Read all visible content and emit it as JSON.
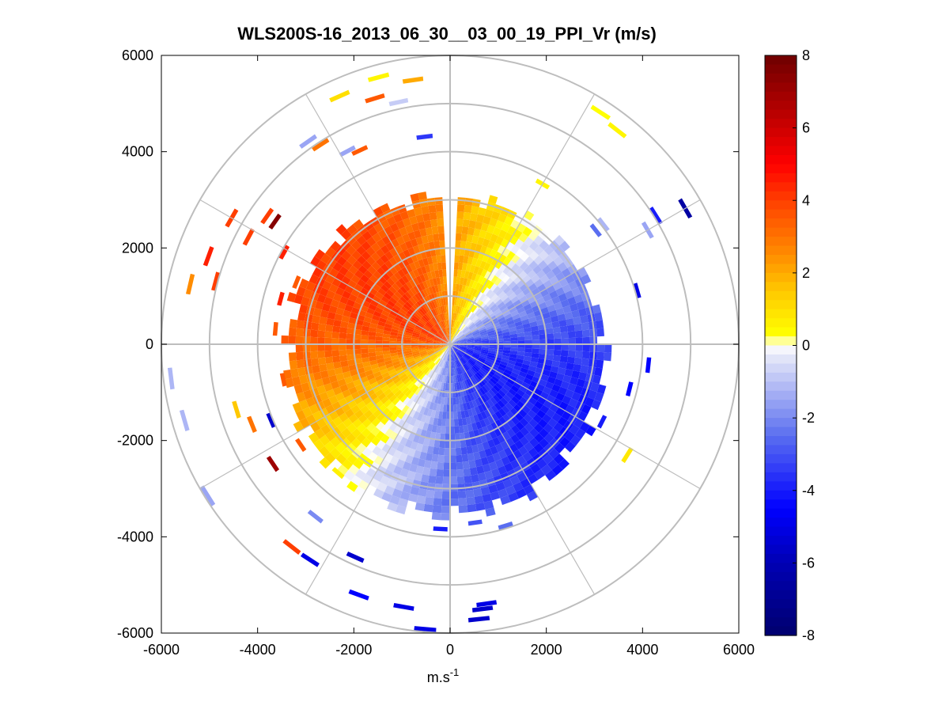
{
  "chart_data": {
    "type": "heatmap",
    "title": "WLS200S-16_2013_06_30__03_00_19_PPI_Vr (m/s)",
    "xlabel": "m.s",
    "xlabel_sup": "-1",
    "ylabel": "",
    "xlim": [
      -6000,
      6000
    ],
    "ylim": [
      -6000,
      6000
    ],
    "xticks": [
      -6000,
      -4000,
      -2000,
      0,
      2000,
      4000,
      6000
    ],
    "yticks": [
      6000,
      4000,
      2000,
      0,
      -2000,
      -4000,
      -6000
    ],
    "range_rings_m": [
      1000,
      2000,
      3000,
      4000,
      5000,
      6000
    ],
    "spoke_angles_deg": [
      0,
      30,
      60,
      90,
      120,
      150,
      180,
      210,
      240,
      270,
      300,
      330
    ],
    "colorbar": {
      "min": -8,
      "max": 8,
      "ticks": [
        8,
        6,
        4,
        2,
        0,
        -2,
        -4,
        -6,
        -8
      ],
      "colormap": "blue-white-yellow-red",
      "stops": [
        {
          "v": -8,
          "color": "#00006e"
        },
        {
          "v": -6,
          "color": "#0000b4"
        },
        {
          "v": -4.5,
          "color": "#0000ff"
        },
        {
          "v": -2.5,
          "color": "#5a6ef0"
        },
        {
          "v": -0.3,
          "color": "#e6e8f8"
        },
        {
          "v": 0,
          "color": "#ffffff"
        },
        {
          "v": 0.3,
          "color": "#ffff00"
        },
        {
          "v": 1.5,
          "color": "#ffc800"
        },
        {
          "v": 2.5,
          "color": "#ff8c00"
        },
        {
          "v": 3.8,
          "color": "#ff4a00"
        },
        {
          "v": 5,
          "color": "#ff0000"
        },
        {
          "v": 6.5,
          "color": "#b40000"
        },
        {
          "v": 8,
          "color": "#6e0000"
        }
      ]
    },
    "velocity_field": {
      "model": "Vr = -4 * cos(azimuth_deg - 125)",
      "azimuth_origin": "north",
      "azimuth_direction": "clockwise",
      "main_coverage_max_range_m": 3600,
      "no_data_azimuth_gap_deg": [
        -2,
        2
      ],
      "range_gates_m": 150
    },
    "scattered_returns": [
      {
        "r": 4400,
        "az": 305,
        "v": 7.5
      },
      {
        "r": 5200,
        "az": 300,
        "v": 4
      },
      {
        "r": 4700,
        "az": 298,
        "v": 4
      },
      {
        "r": 5300,
        "az": 290,
        "v": 4.5
      },
      {
        "r": 5000,
        "az": 285,
        "v": 4
      },
      {
        "r": 5500,
        "az": 283,
        "v": 2.5
      },
      {
        "r": 4600,
        "az": 305,
        "v": 4
      },
      {
        "r": 5600,
        "az": 336,
        "v": 1
      },
      {
        "r": 5700,
        "az": 345,
        "v": 0.5
      },
      {
        "r": 5500,
        "az": 352,
        "v": 2
      },
      {
        "r": 5300,
        "az": 343,
        "v": 3.5
      },
      {
        "r": 5100,
        "az": 348,
        "v": -0.8
      },
      {
        "r": 5100,
        "az": 325,
        "v": -1.5
      },
      {
        "r": 4900,
        "az": 327,
        "v": 3
      },
      {
        "r": 4500,
        "az": 332,
        "v": -1.5
      },
      {
        "r": 4400,
        "az": 335,
        "v": 3.5
      },
      {
        "r": 4300,
        "az": 353,
        "v": -3.5
      },
      {
        "r": 5700,
        "az": 33,
        "v": 0.3
      },
      {
        "r": 5600,
        "az": 38,
        "v": 0.5
      },
      {
        "r": 5600,
        "az": 60,
        "v": -6.5
      },
      {
        "r": 5000,
        "az": 58,
        "v": -4
      },
      {
        "r": 4700,
        "az": 60,
        "v": -1.5
      },
      {
        "r": 4000,
        "az": 52,
        "v": -1.2
      },
      {
        "r": 3800,
        "az": 30,
        "v": 0.5
      },
      {
        "r": 4000,
        "az": 74,
        "v": -5
      },
      {
        "r": 5700,
        "az": 254,
        "v": -1.2
      },
      {
        "r": 5800,
        "az": 263,
        "v": -1.2
      },
      {
        "r": 4400,
        "az": 248,
        "v": 3
      },
      {
        "r": 4600,
        "az": 253,
        "v": 1.5
      },
      {
        "r": 4000,
        "az": 247,
        "v": -5.5
      },
      {
        "r": 4400,
        "az": 236,
        "v": 7
      },
      {
        "r": 5900,
        "az": 238,
        "v": -1.5
      },
      {
        "r": 5300,
        "az": 218,
        "v": 4
      },
      {
        "r": 4500,
        "az": 218,
        "v": -2
      },
      {
        "r": 5300,
        "az": 213,
        "v": -5
      },
      {
        "r": 4800,
        "az": 204,
        "v": -5.5
      },
      {
        "r": 5500,
        "az": 200,
        "v": -4.5
      },
      {
        "r": 5500,
        "az": 190,
        "v": -5
      },
      {
        "r": 5900,
        "az": 185,
        "v": -5
      },
      {
        "r": 5700,
        "az": 174,
        "v": -5.5
      },
      {
        "r": 5500,
        "az": 173,
        "v": -5.5
      },
      {
        "r": 5400,
        "az": 172,
        "v": -5
      },
      {
        "r": 3700,
        "az": 172,
        "v": -3
      },
      {
        "r": 3900,
        "az": 163,
        "v": -2.5
      },
      {
        "r": 3800,
        "az": 183,
        "v": -4
      },
      {
        "r": 3500,
        "az": 221,
        "v": 0.6
      },
      {
        "r": 3700,
        "az": 236,
        "v": 3.5
      },
      {
        "r": 3500,
        "az": 258,
        "v": 3.5
      },
      {
        "r": 3600,
        "az": 275,
        "v": 3.5
      },
      {
        "r": 3600,
        "az": 285,
        "v": 4.5
      },
      {
        "r": 3900,
        "az": 299,
        "v": 4.5
      },
      {
        "r": 3400,
        "az": 292,
        "v": 3.5
      },
      {
        "r": 4300,
        "az": 122,
        "v": 0.8
      },
      {
        "r": 3800,
        "az": 104,
        "v": -4.5
      },
      {
        "r": 4100,
        "az": 96,
        "v": -4.5
      },
      {
        "r": 3500,
        "az": 117,
        "v": -4
      },
      {
        "r": 3800,
        "az": 52,
        "v": -2.5
      }
    ]
  }
}
